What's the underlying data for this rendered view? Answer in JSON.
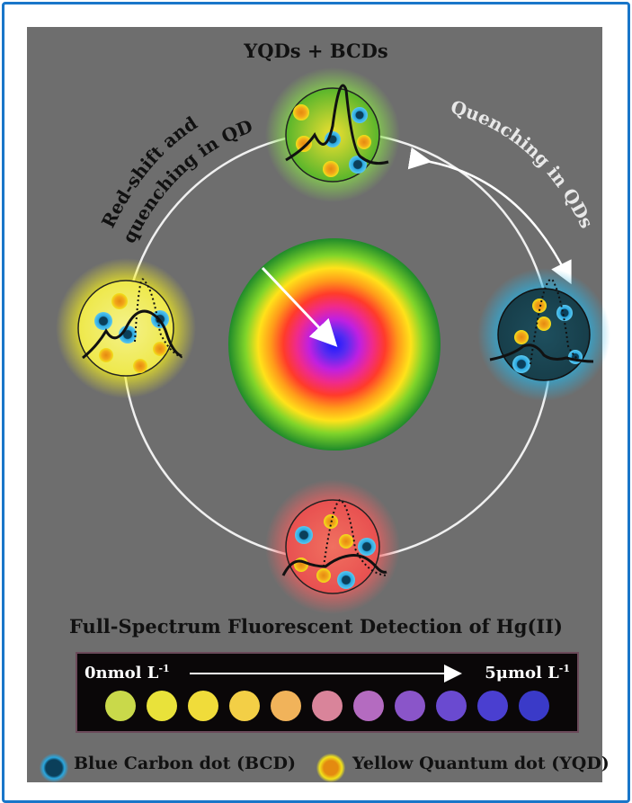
{
  "diagram": {
    "top_label": "YQDs + BCDs",
    "left_arc_label_line1": "Red-shift and",
    "left_arc_label_line2": "quenching in QDs",
    "right_arc_label": "Quenching in QDs",
    "section_title": "Full-Spectrum Fluorescent Detection of Hg(II)",
    "strip_left_label": "0nmol L",
    "strip_left_sup": "-1",
    "strip_right_label": "5μmol L",
    "strip_right_sup": "-1",
    "vial_colors": [
      "#c9d94a",
      "#e9e23a",
      "#f0dc3a",
      "#f3cf46",
      "#f1b35a",
      "#d9849a",
      "#b46bc0",
      "#8a55c9",
      "#6a4ad0",
      "#4a3fd0",
      "#3a3ac8"
    ],
    "legend": [
      {
        "label": "Blue Carbon dot (BCD)",
        "icon": "blue-carbon-dot-icon",
        "color": "#2aa7df"
      },
      {
        "label": "Yellow Quantum dot (YQD)",
        "icon": "yellow-quantum-dot-icon",
        "color": "#f2e21a"
      }
    ]
  }
}
